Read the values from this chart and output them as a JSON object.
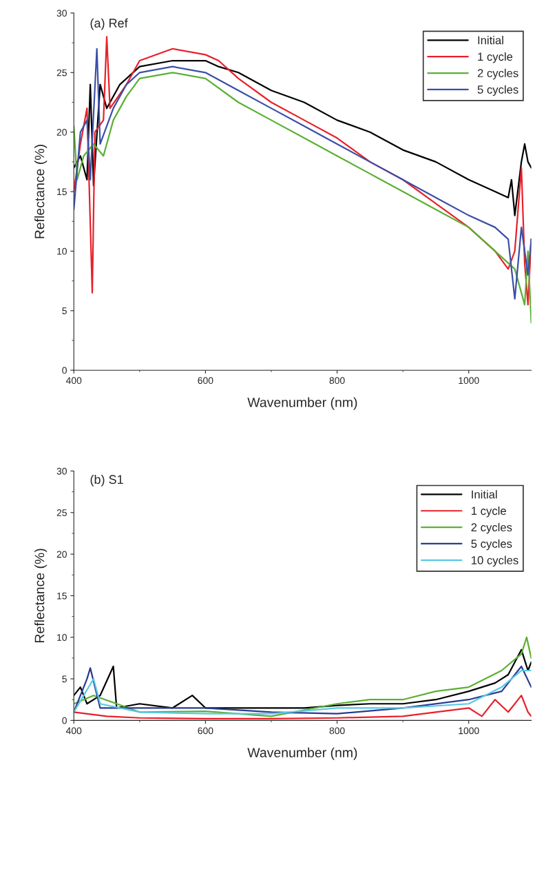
{
  "chart_data": [
    {
      "type": "line",
      "title": "(a) Ref",
      "xlabel": "Wavenumber (nm)",
      "ylabel": "Reflectance (%)",
      "xlim": [
        400,
        1095
      ],
      "xticks": [
        400,
        600,
        800,
        1000
      ],
      "ylim": [
        0,
        30
      ],
      "yticks": [
        0,
        5,
        10,
        15,
        20,
        25,
        30
      ],
      "grid": false,
      "legend": "top right",
      "series": [
        {
          "name": "Initial",
          "color": "#000000",
          "x": [
            400,
            410,
            420,
            425,
            430,
            440,
            450,
            470,
            500,
            550,
            600,
            620,
            650,
            700,
            750,
            800,
            850,
            900,
            950,
            1000,
            1040,
            1060,
            1065,
            1070,
            1080,
            1085,
            1090,
            1095
          ],
          "values": [
            17,
            18,
            16,
            24,
            15.5,
            24,
            22,
            24,
            25.5,
            26,
            26,
            25.5,
            25,
            23.5,
            22.5,
            21,
            20,
            18.5,
            17.5,
            16,
            15,
            14.5,
            16,
            13,
            17.5,
            19,
            17.5,
            17
          ]
        },
        {
          "name": "1 cycle",
          "color": "#e8202a",
          "x": [
            400,
            410,
            420,
            428,
            432,
            445,
            450,
            455,
            480,
            500,
            550,
            600,
            620,
            650,
            700,
            750,
            800,
            850,
            900,
            950,
            1000,
            1040,
            1060,
            1070,
            1080,
            1085,
            1090,
            1095
          ],
          "values": [
            15,
            19,
            22,
            6.5,
            20,
            21,
            28,
            22,
            24,
            26,
            27,
            26.5,
            26,
            24.5,
            22.5,
            21,
            19.5,
            17.5,
            16,
            14,
            12,
            10,
            8.5,
            10,
            17,
            9,
            5.5,
            11
          ]
        },
        {
          "name": "2 cycles",
          "color": "#5ab034",
          "x": [
            400,
            405,
            415,
            430,
            445,
            460,
            480,
            500,
            550,
            600,
            650,
            700,
            750,
            800,
            850,
            900,
            950,
            1000,
            1040,
            1070,
            1085,
            1090,
            1095
          ],
          "values": [
            20.5,
            16,
            18,
            19,
            18,
            21,
            23,
            24.5,
            25,
            24.5,
            22.5,
            21,
            19.5,
            18,
            16.5,
            15,
            13.5,
            12,
            10,
            8.5,
            5.5,
            10,
            4
          ]
        },
        {
          "name": "5 cycles",
          "color": "#3a4fa8",
          "x": [
            400,
            410,
            420,
            425,
            435,
            440,
            460,
            480,
            500,
            550,
            600,
            650,
            700,
            750,
            800,
            850,
            900,
            950,
            1000,
            1040,
            1060,
            1070,
            1080,
            1090,
            1095
          ],
          "values": [
            13.5,
            20,
            21,
            16,
            27,
            19,
            22,
            24,
            25,
            25.5,
            25,
            23.5,
            22,
            20.5,
            19,
            17.5,
            16,
            14.5,
            13,
            12,
            11,
            6,
            12,
            8,
            11
          ]
        }
      ]
    },
    {
      "type": "line",
      "title": "(b) S1",
      "xlabel": "Wavenumber (nm)",
      "ylabel": "Reflectance (%)",
      "xlim": [
        400,
        1095
      ],
      "xticks": [
        400,
        600,
        800,
        1000
      ],
      "ylim": [
        0,
        30
      ],
      "yticks": [
        0,
        5,
        10,
        15,
        20,
        25,
        30
      ],
      "grid": false,
      "legend": "top right",
      "series": [
        {
          "name": "Initial",
          "color": "#000000",
          "x": [
            400,
            410,
            420,
            440,
            460,
            465,
            500,
            550,
            580,
            600,
            700,
            750,
            800,
            850,
            900,
            950,
            1000,
            1040,
            1060,
            1080,
            1090,
            1095
          ],
          "values": [
            3,
            4,
            2,
            3,
            6.5,
            1.5,
            2,
            1.5,
            3,
            1.5,
            1.5,
            1.5,
            1.8,
            2,
            2,
            2.5,
            3.5,
            4.5,
            5.5,
            8.5,
            6,
            7
          ]
        },
        {
          "name": "1 cycle",
          "color": "#e8202a",
          "x": [
            400,
            450,
            500,
            600,
            700,
            800,
            900,
            950,
            1000,
            1020,
            1040,
            1060,
            1080,
            1090,
            1095
          ],
          "values": [
            1,
            0.5,
            0.3,
            0.2,
            0.2,
            0.3,
            0.5,
            1,
            1.5,
            0.5,
            2.5,
            1,
            3,
            1,
            0.5
          ]
        },
        {
          "name": "2 cycles",
          "color": "#5ab034",
          "x": [
            400,
            430,
            500,
            600,
            700,
            800,
            850,
            900,
            950,
            1000,
            1050,
            1080,
            1088,
            1095
          ],
          "values": [
            2,
            3,
            1,
            1.1,
            0.5,
            2,
            2.5,
            2.5,
            3.5,
            4,
            6,
            8,
            10,
            7.5
          ]
        },
        {
          "name": "5 cycles",
          "color": "#2a3a90",
          "x": [
            400,
            420,
            425,
            440,
            500,
            600,
            700,
            800,
            900,
            1000,
            1050,
            1080,
            1095
          ],
          "values": [
            1,
            5,
            6.3,
            1.5,
            1.5,
            1.5,
            1,
            0.8,
            1.5,
            2.5,
            3.5,
            6.5,
            4
          ]
        },
        {
          "name": "10 cycles",
          "color": "#5bc8e6",
          "x": [
            400,
            430,
            440,
            500,
            600,
            700,
            800,
            900,
            1000,
            1050,
            1080,
            1095
          ],
          "values": [
            1,
            5,
            2,
            1,
            0.8,
            0.8,
            1.5,
            1.5,
            2,
            4,
            6,
            6
          ]
        }
      ]
    }
  ]
}
